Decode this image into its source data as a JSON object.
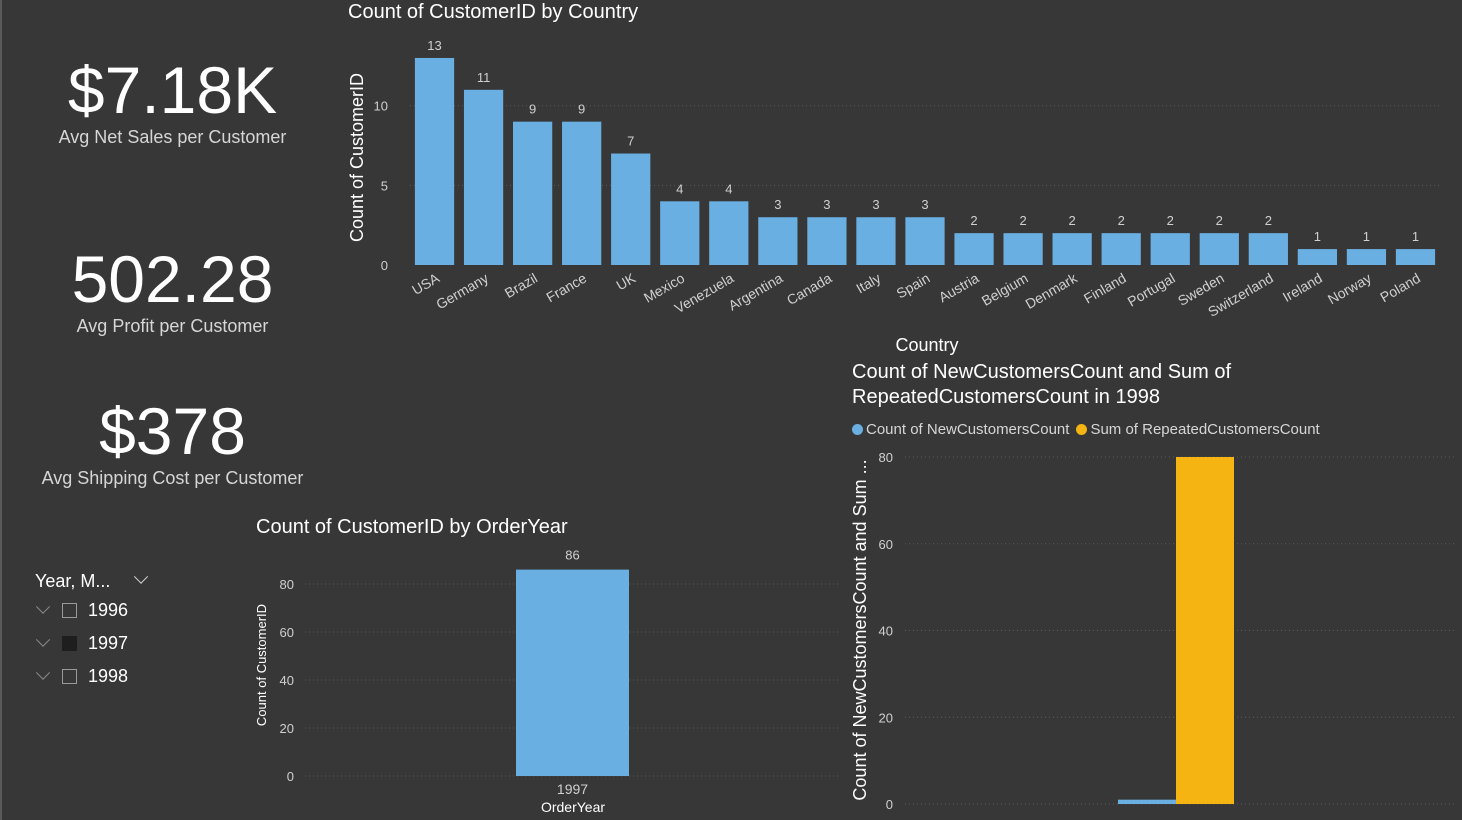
{
  "kpis": [
    {
      "value": "$7.18K",
      "label": "Avg Net Sales per Customer"
    },
    {
      "value": "502.28",
      "label": "Avg Profit per Customer"
    },
    {
      "value": "$378",
      "label": "Avg Shipping Cost per Customer"
    }
  ],
  "slicer": {
    "title": "Year, M...",
    "items": [
      {
        "label": "1996",
        "checked": false
      },
      {
        "label": "1997",
        "checked": true
      },
      {
        "label": "1998",
        "checked": false
      }
    ]
  },
  "colors": {
    "bar_blue": "#6aafe1",
    "bar_orange": "#f5b412",
    "axis_text": "#d0d0d0",
    "grid": "#5b5b5b"
  },
  "chart_data": [
    {
      "type": "bar",
      "title": "Count of CustomerID by Country",
      "xlabel": "Country",
      "ylabel": "Count of CustomerID",
      "ylim": [
        0,
        13.5
      ],
      "yticks": [
        0,
        5,
        10
      ],
      "categories": [
        "USA",
        "Germany",
        "Brazil",
        "France",
        "UK",
        "Mexico",
        "Venezuela",
        "Argentina",
        "Canada",
        "Italy",
        "Spain",
        "Austria",
        "Belgium",
        "Denmark",
        "Finland",
        "Portugal",
        "Sweden",
        "Switzerland",
        "Ireland",
        "Norway",
        "Poland"
      ],
      "values": [
        13,
        11,
        9,
        9,
        7,
        4,
        4,
        3,
        3,
        3,
        3,
        2,
        2,
        2,
        2,
        2,
        2,
        2,
        1,
        1,
        1
      ],
      "data_labels": true,
      "grid": true
    },
    {
      "type": "bar",
      "title": "Count of CustomerID by OrderYear",
      "xlabel": "OrderYear",
      "ylabel": "Count of CustomerID",
      "ylim": [
        0,
        90
      ],
      "yticks": [
        0,
        20,
        40,
        60,
        80
      ],
      "categories": [
        "1997"
      ],
      "values": [
        86
      ],
      "data_labels": true,
      "grid": true
    },
    {
      "type": "bar",
      "title": "Count of NewCustomersCount and Sum of RepeatedCustomersCount in 1998",
      "ylabel": "Count of NewCustomersCount and Sum ...",
      "ylim": [
        0,
        80
      ],
      "yticks": [
        0,
        20,
        40,
        60,
        80
      ],
      "legend": "top-left",
      "series": [
        {
          "name": "Count of NewCustomersCount",
          "values": [
            1
          ]
        },
        {
          "name": "Sum of RepeatedCustomersCount",
          "values": [
            80
          ]
        }
      ],
      "grid": true
    }
  ]
}
